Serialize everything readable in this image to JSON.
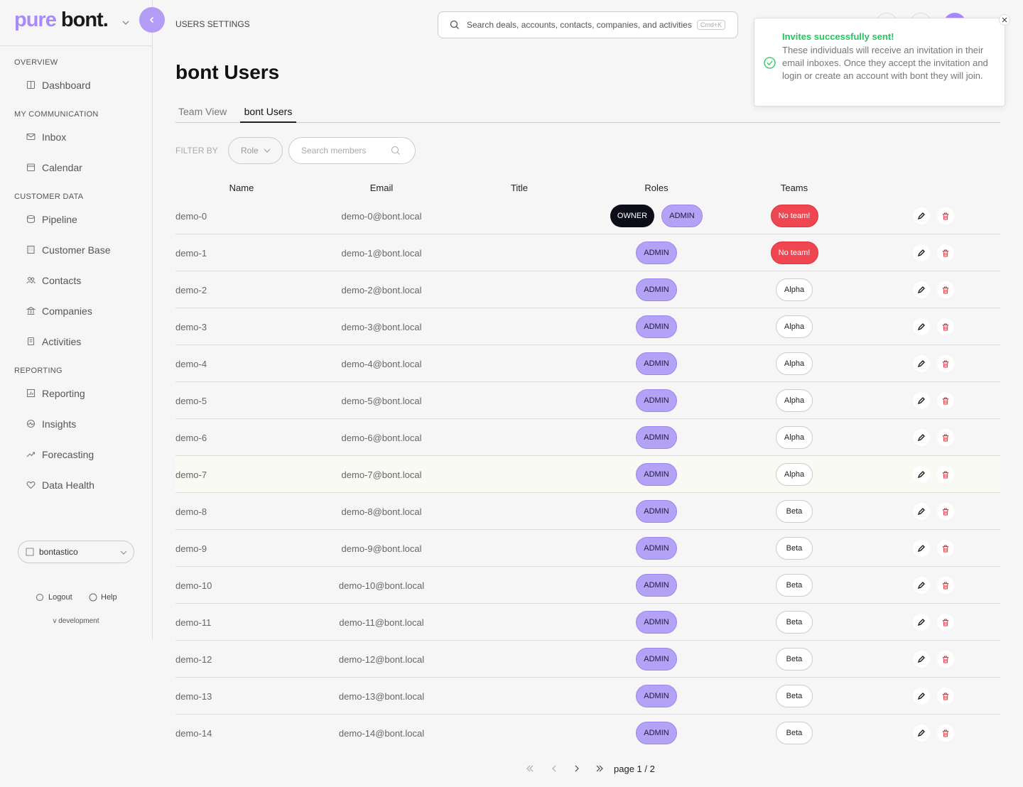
{
  "brand": {
    "prefix": "pure",
    "name": "bont."
  },
  "breadcrumb": "USERS SETTINGS",
  "search": {
    "placeholder": "Search deals, accounts, contacts, companies, and activities",
    "shortcut": "Cmd+K"
  },
  "sidebar": {
    "sections": [
      {
        "title": "OVERVIEW",
        "items": [
          "Dashboard"
        ]
      },
      {
        "title": "MY COMMUNICATION",
        "items": [
          "Inbox",
          "Calendar"
        ]
      },
      {
        "title": "CUSTOMER DATA",
        "items": [
          "Pipeline",
          "Customer Base",
          "Contacts",
          "Companies",
          "Activities"
        ]
      },
      {
        "title": "REPORTING",
        "items": [
          "Reporting",
          "Insights",
          "Forecasting",
          "Data Health"
        ]
      }
    ],
    "workspace": "bontastico",
    "logout": "Logout",
    "help": "Help",
    "version": "v development"
  },
  "page_title": "bont Users",
  "tabs": [
    "Team View",
    "bont Users"
  ],
  "filter": {
    "label": "FILTER BY",
    "role": "Role",
    "search": "Search members"
  },
  "table": {
    "columns": [
      "Name",
      "Email",
      "Title",
      "Roles",
      "Teams"
    ],
    "rows": [
      {
        "name": "demo-0",
        "email": "demo-0@bont.local",
        "roles": [
          "OWNER",
          "ADMIN"
        ],
        "team": "No team!"
      },
      {
        "name": "demo-1",
        "email": "demo-1@bont.local",
        "roles": [
          "ADMIN"
        ],
        "team": "No team!"
      },
      {
        "name": "demo-2",
        "email": "demo-2@bont.local",
        "roles": [
          "ADMIN"
        ],
        "team": "Alpha"
      },
      {
        "name": "demo-3",
        "email": "demo-3@bont.local",
        "roles": [
          "ADMIN"
        ],
        "team": "Alpha"
      },
      {
        "name": "demo-4",
        "email": "demo-4@bont.local",
        "roles": [
          "ADMIN"
        ],
        "team": "Alpha"
      },
      {
        "name": "demo-5",
        "email": "demo-5@bont.local",
        "roles": [
          "ADMIN"
        ],
        "team": "Alpha"
      },
      {
        "name": "demo-6",
        "email": "demo-6@bont.local",
        "roles": [
          "ADMIN"
        ],
        "team": "Alpha"
      },
      {
        "name": "demo-7",
        "email": "demo-7@bont.local",
        "roles": [
          "ADMIN"
        ],
        "team": "Alpha"
      },
      {
        "name": "demo-8",
        "email": "demo-8@bont.local",
        "roles": [
          "ADMIN"
        ],
        "team": "Beta"
      },
      {
        "name": "demo-9",
        "email": "demo-9@bont.local",
        "roles": [
          "ADMIN"
        ],
        "team": "Beta"
      },
      {
        "name": "demo-10",
        "email": "demo-10@bont.local",
        "roles": [
          "ADMIN"
        ],
        "team": "Beta"
      },
      {
        "name": "demo-11",
        "email": "demo-11@bont.local",
        "roles": [
          "ADMIN"
        ],
        "team": "Beta"
      },
      {
        "name": "demo-12",
        "email": "demo-12@bont.local",
        "roles": [
          "ADMIN"
        ],
        "team": "Beta"
      },
      {
        "name": "demo-13",
        "email": "demo-13@bont.local",
        "roles": [
          "ADMIN"
        ],
        "team": "Beta"
      },
      {
        "name": "demo-14",
        "email": "demo-14@bont.local",
        "roles": [
          "ADMIN"
        ],
        "team": "Beta"
      }
    ]
  },
  "pagination": "page 1 / 2",
  "toast": {
    "title": "Invites successfully sent!",
    "message": "These individuals will receive an invitation in their email inboxes. Once they accept the invitation and login or create an account with bont they will join."
  }
}
